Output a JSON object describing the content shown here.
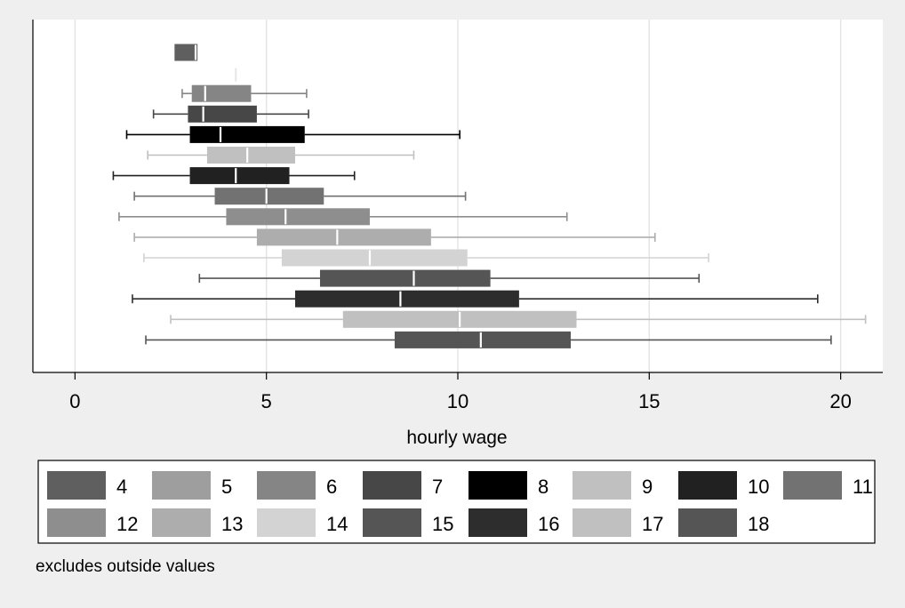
{
  "chart_data": {
    "type": "box",
    "orientation": "horizontal",
    "title": "",
    "xlabel": "hourly wage",
    "ylabel": "",
    "xlim": [
      -1.1,
      21.1
    ],
    "xticks": [
      0,
      5,
      10,
      15,
      20
    ],
    "xtick_labels": [
      "0",
      "5",
      "10",
      "15",
      "20"
    ],
    "grid": true,
    "legend_position": "bottom",
    "note": "excludes outside values",
    "series": [
      {
        "name": "4",
        "color": "#5f5f5f",
        "min": 2.6,
        "q1": 2.6,
        "median": 3.15,
        "q3": 3.2,
        "max": 3.2
      },
      {
        "name": "5",
        "color": "#9e9e9e",
        "min": 4.2,
        "q1": 4.2,
        "median": 4.2,
        "q3": 4.2,
        "max": 4.2
      },
      {
        "name": "6",
        "color": "#858585",
        "min": 2.8,
        "q1": 3.05,
        "median": 3.4,
        "q3": 4.6,
        "max": 6.05
      },
      {
        "name": "7",
        "color": "#474747",
        "min": 2.05,
        "q1": 2.95,
        "median": 3.35,
        "q3": 4.75,
        "max": 6.1
      },
      {
        "name": "8",
        "color": "#000000",
        "min": 1.35,
        "q1": 3.0,
        "median": 3.8,
        "q3": 6.0,
        "max": 10.05
      },
      {
        "name": "9",
        "color": "#c0c0c0",
        "min": 1.9,
        "q1": 3.45,
        "median": 4.5,
        "q3": 5.75,
        "max": 8.85
      },
      {
        "name": "10",
        "color": "#212121",
        "min": 1.0,
        "q1": 3.0,
        "median": 4.2,
        "q3": 5.6,
        "max": 7.3
      },
      {
        "name": "11",
        "color": "#727272",
        "min": 1.55,
        "q1": 3.65,
        "median": 5.0,
        "q3": 6.5,
        "max": 10.2
      },
      {
        "name": "12",
        "color": "#8e8e8e",
        "min": 1.15,
        "q1": 3.95,
        "median": 5.5,
        "q3": 7.7,
        "max": 12.85
      },
      {
        "name": "13",
        "color": "#adadad",
        "min": 1.55,
        "q1": 4.75,
        "median": 6.85,
        "q3": 9.3,
        "max": 15.15
      },
      {
        "name": "14",
        "color": "#d3d3d3",
        "min": 1.8,
        "q1": 5.4,
        "median": 7.7,
        "q3": 10.25,
        "max": 16.55
      },
      {
        "name": "15",
        "color": "#555555",
        "min": 3.25,
        "q1": 6.4,
        "median": 8.85,
        "q3": 10.85,
        "max": 16.3
      },
      {
        "name": "16",
        "color": "#2d2d2d",
        "min": 1.5,
        "q1": 5.75,
        "median": 8.5,
        "q3": 11.6,
        "max": 19.4
      },
      {
        "name": "17",
        "color": "#c0c0c0",
        "min": 2.5,
        "q1": 7.0,
        "median": 10.05,
        "q3": 13.1,
        "max": 20.65
      },
      {
        "name": "18",
        "color": "#555555",
        "min": 1.85,
        "q1": 8.35,
        "median": 10.6,
        "q3": 12.95,
        "max": 19.75
      }
    ]
  }
}
